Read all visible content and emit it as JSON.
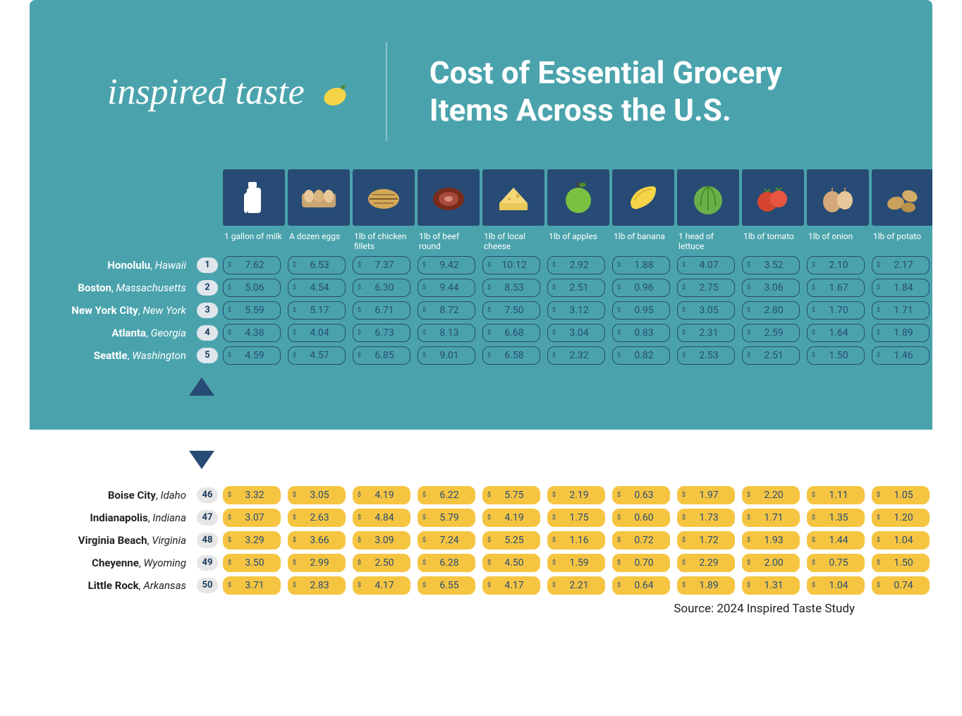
{
  "brand": "inspired taste",
  "title_l1": "Cost of Essential Grocery",
  "title_l2": "Items Across the U.S.",
  "source": "Source: 2024 Inspired Taste Study",
  "colors": {
    "hero_bg": "#4aa3ac",
    "icon_bg": "#274b74",
    "navy": "#274b74",
    "yellow": "#f5c542",
    "white": "#ffffff"
  },
  "columns": [
    {
      "label": "1 gallon of milk",
      "icon": "milk"
    },
    {
      "label": "A dozen eggs",
      "icon": "eggs"
    },
    {
      "label": "1lb of chicken fillets",
      "icon": "chicken"
    },
    {
      "label": "1lb of beef round",
      "icon": "beef"
    },
    {
      "label": "1lb of local cheese",
      "icon": "cheese"
    },
    {
      "label": "1lb of apples",
      "icon": "apple"
    },
    {
      "label": "1lb of banana",
      "icon": "banana"
    },
    {
      "label": "1 head of lettuce",
      "icon": "lettuce"
    },
    {
      "label": "1lb of tomato",
      "icon": "tomato"
    },
    {
      "label": "1lb of onion",
      "icon": "onion"
    },
    {
      "label": "1lb of potato",
      "icon": "potato"
    }
  ],
  "top": [
    {
      "rank": "1",
      "city": "Honolulu",
      "state": "Hawaii",
      "v": [
        "7.62",
        "6.53",
        "7.37",
        "9.42",
        "10.12",
        "2.92",
        "1.88",
        "4.07",
        "3.52",
        "2.10",
        "2.17"
      ]
    },
    {
      "rank": "2",
      "city": "Boston",
      "state": "Massachusetts",
      "v": [
        "5.06",
        "4.54",
        "6.30",
        "9.44",
        "8.53",
        "2.51",
        "0.96",
        "2.75",
        "3.06",
        "1.67",
        "1.84"
      ]
    },
    {
      "rank": "3",
      "city": "New York City",
      "state": "New York",
      "v": [
        "5.59",
        "5.17",
        "6.71",
        "8.72",
        "7.50",
        "3.12",
        "0.95",
        "3.05",
        "2.80",
        "1.70",
        "1.71"
      ]
    },
    {
      "rank": "4",
      "city": "Atlanta",
      "state": "Georgia",
      "v": [
        "4.38",
        "4.04",
        "6.73",
        "8.13",
        "6.68",
        "3.04",
        "0.83",
        "2.31",
        "2.59",
        "1.64",
        "1.89"
      ]
    },
    {
      "rank": "5",
      "city": "Seattle",
      "state": "Washington",
      "v": [
        "4.59",
        "4.57",
        "6.85",
        "9.01",
        "6.58",
        "2.32",
        "0.82",
        "2.53",
        "2.51",
        "1.50",
        "1.46"
      ]
    }
  ],
  "bottom": [
    {
      "rank": "46",
      "city": "Boise City",
      "state": "Idaho",
      "v": [
        "3.32",
        "3.05",
        "4.19",
        "6.22",
        "5.75",
        "2.19",
        "0.63",
        "1.97",
        "2.20",
        "1.11",
        "1.05"
      ]
    },
    {
      "rank": "47",
      "city": "Indianapolis",
      "state": "Indiana",
      "v": [
        "3.07",
        "2.63",
        "4.84",
        "5.79",
        "4.19",
        "1.75",
        "0.60",
        "1.73",
        "1.71",
        "1.35",
        "1.20"
      ]
    },
    {
      "rank": "48",
      "city": "Virginia Beach",
      "state": "Virginia",
      "v": [
        "3.29",
        "3.66",
        "3.09",
        "7.24",
        "5.25",
        "1.16",
        "0.72",
        "1.72",
        "1.93",
        "1.44",
        "1.04"
      ]
    },
    {
      "rank": "49",
      "city": "Cheyenne",
      "state": "Wyoming",
      "v": [
        "3.50",
        "2.99",
        "2.50",
        "6.28",
        "4.50",
        "1.59",
        "0.70",
        "2.29",
        "2.00",
        "0.75",
        "1.50"
      ]
    },
    {
      "rank": "50",
      "city": "Little Rock",
      "state": "Arkansas",
      "v": [
        "3.71",
        "2.83",
        "4.17",
        "6.55",
        "4.17",
        "2.21",
        "0.64",
        "1.89",
        "1.31",
        "1.04",
        "0.74"
      ]
    }
  ]
}
